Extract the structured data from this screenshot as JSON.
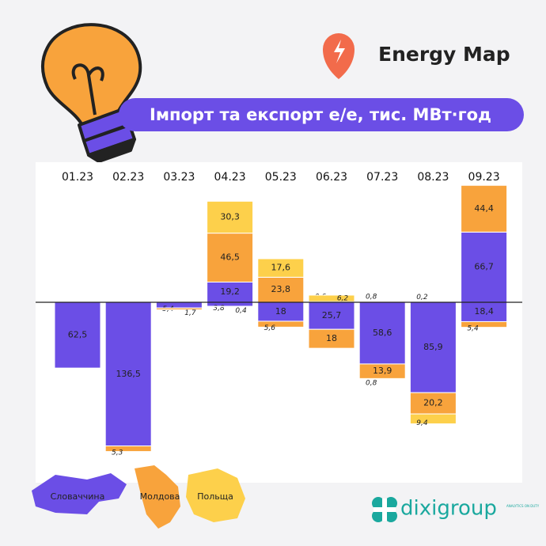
{
  "brand": "Energy Map",
  "logo": {
    "name": "dixigroup",
    "tagline": "ANALYTICS ON DUTY"
  },
  "chart_data": {
    "type": "diverging-stacked-bar",
    "title": "Імпорт та експорт е/е, тис. МВт·год",
    "categories": [
      "01.23",
      "02.23",
      "03.23",
      "04.23",
      "05.23",
      "06.23",
      "07.23",
      "08.23",
      "09.23"
    ],
    "series": [
      {
        "name": "Словаччина",
        "color": "#6b4ee6",
        "export": [
          null,
          null,
          null,
          19.2,
          null,
          null,
          null,
          null,
          66.7
        ],
        "export_labels": [
          null,
          null,
          null,
          "19,2",
          null,
          null,
          null,
          null,
          "66,7"
        ],
        "import": [
          62.5,
          136.5,
          5.4,
          3.8,
          18,
          25.7,
          58.6,
          85.9,
          18.4
        ],
        "import_labels": [
          "62,5",
          "136,5",
          "5,4",
          "3,8",
          "18",
          "25,7",
          "58,6",
          "85,9",
          "18,4"
        ]
      },
      {
        "name": "Молдова",
        "color": "#f8a33c",
        "export": [
          null,
          null,
          null,
          46.5,
          23.8,
          0.6,
          0.8,
          0.2,
          44.4
        ],
        "export_labels": [
          null,
          null,
          null,
          "46,5",
          "23,8",
          "0,6",
          "0,8",
          "0,2",
          "44,4"
        ],
        "import": [
          null,
          5.3,
          1.7,
          0.4,
          5.6,
          18,
          13.9,
          20.2,
          5.4
        ],
        "import_labels": [
          null,
          "5,3",
          "1,7",
          "0,4",
          "5,6",
          "18",
          "13,9",
          "20,2",
          "5,4"
        ]
      },
      {
        "name": "Польща",
        "color": "#fdd04b",
        "export": [
          null,
          null,
          null,
          30.3,
          17.6,
          6.2,
          null,
          null,
          null
        ],
        "export_labels": [
          null,
          null,
          null,
          "30,3",
          "17,6",
          "6,2",
          null,
          null,
          null
        ],
        "import": [
          null,
          null,
          null,
          null,
          null,
          null,
          0.8,
          9.4,
          null
        ],
        "import_labels": [
          null,
          null,
          null,
          null,
          null,
          null,
          "0,8",
          "9,4",
          null
        ]
      }
    ]
  }
}
